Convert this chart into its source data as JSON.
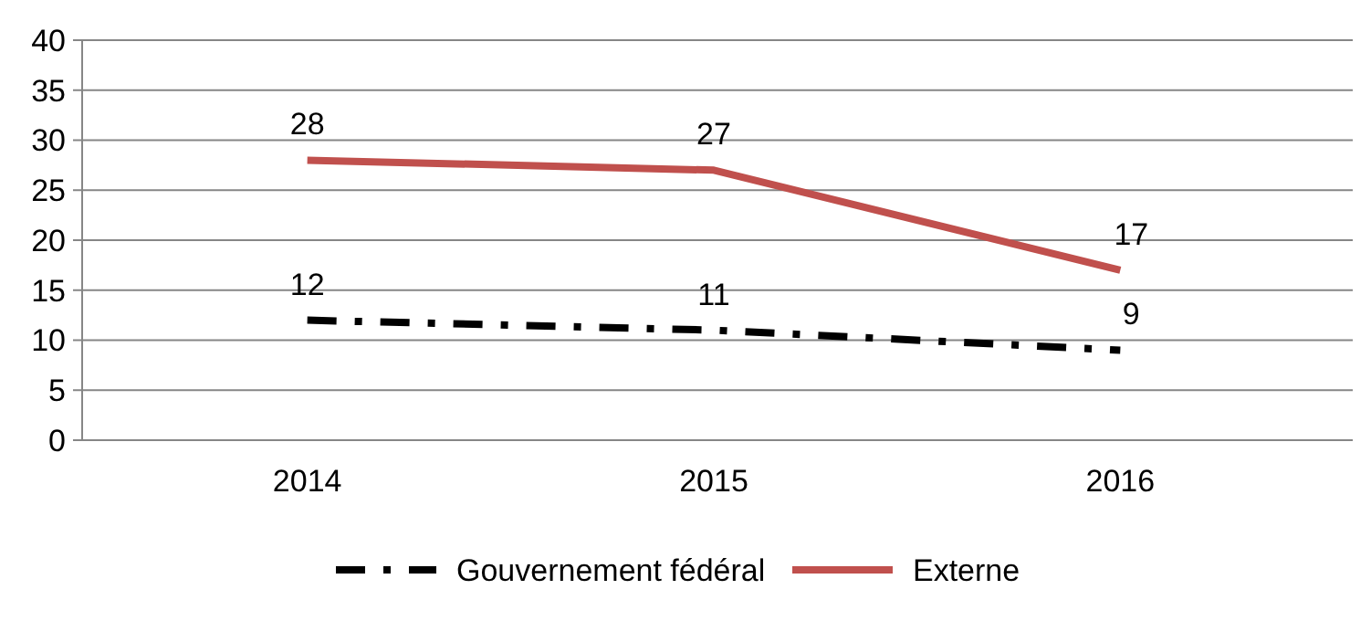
{
  "chart_data": {
    "type": "line",
    "categories": [
      "2014",
      "2015",
      "2016"
    ],
    "series": [
      {
        "name": "Gouvernement fédéral",
        "color": "#000000",
        "values": [
          12,
          11,
          9
        ],
        "line_style": "dashed"
      },
      {
        "name": "Externe",
        "color": "#c0504d",
        "values": [
          28,
          27,
          17
        ],
        "line_style": "solid"
      }
    ],
    "ylim": [
      0,
      40
    ],
    "yticks": [
      0,
      5,
      10,
      15,
      20,
      25,
      30,
      35,
      40
    ],
    "grid": "y",
    "legend": "bottom",
    "data_labels": true,
    "marker": "none"
  }
}
